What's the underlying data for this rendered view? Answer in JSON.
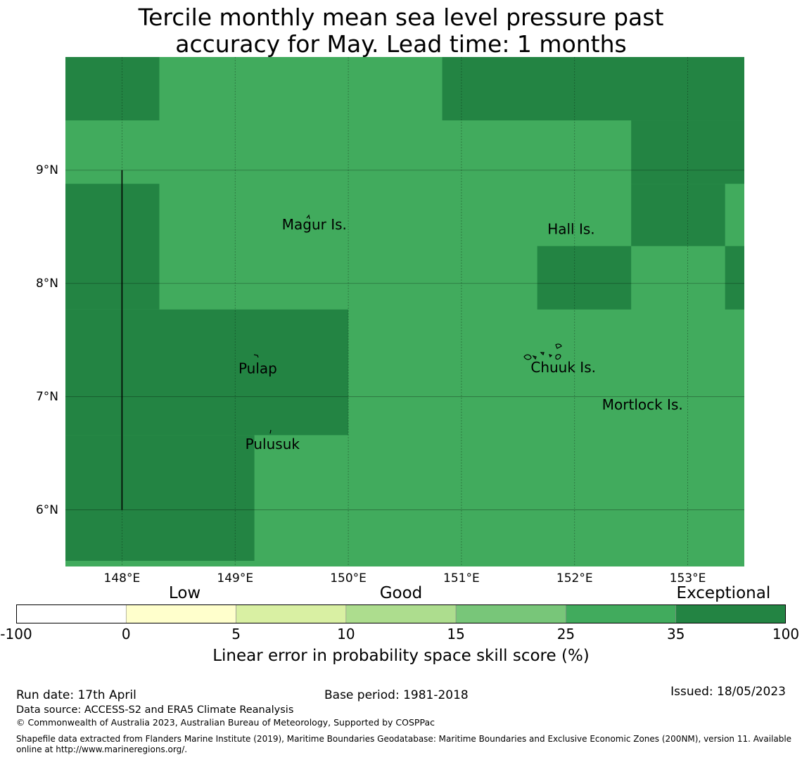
{
  "title": {
    "line1": "Tercile monthly mean sea level pressure past",
    "line2": "accuracy for May. Lead time: 1 months"
  },
  "map": {
    "lon_range": [
      147.5,
      153.5
    ],
    "lat_range": [
      5.5,
      10.0
    ],
    "lat_ticks": [
      {
        "value": 9,
        "label": "9°N"
      },
      {
        "value": 8,
        "label": "8°N"
      },
      {
        "value": 7,
        "label": "7°N"
      },
      {
        "value": 6,
        "label": "6°N"
      }
    ],
    "lon_ticks": [
      {
        "value": 148,
        "label": "148°E"
      },
      {
        "value": 149,
        "label": "149°E"
      },
      {
        "value": 150,
        "label": "150°E"
      },
      {
        "value": 151,
        "label": "151°E"
      },
      {
        "value": 152,
        "label": "152°E"
      },
      {
        "value": 153,
        "label": "153°E"
      }
    ],
    "colors": {
      "good": "#41ab5d",
      "exceptional": "#238443",
      "boundary": "#000000",
      "grid": "#000000"
    },
    "skill_cells": [
      {
        "lon": [
          147.5,
          148.33
        ],
        "lat": [
          9.44,
          10.0
        ],
        "category": "exceptional"
      },
      {
        "lon": [
          150.83,
          153.5
        ],
        "lat": [
          9.44,
          10.0
        ],
        "category": "exceptional"
      },
      {
        "lon": [
          152.5,
          153.5
        ],
        "lat": [
          8.88,
          9.44
        ],
        "category": "exceptional"
      },
      {
        "lon": [
          147.5,
          148.33
        ],
        "lat": [
          7.77,
          8.88
        ],
        "category": "exceptional"
      },
      {
        "lon": [
          152.5,
          153.33
        ],
        "lat": [
          8.33,
          8.88
        ],
        "category": "exceptional"
      },
      {
        "lon": [
          151.67,
          152.5
        ],
        "lat": [
          7.77,
          8.33
        ],
        "category": "exceptional"
      },
      {
        "lon": [
          153.33,
          153.5
        ],
        "lat": [
          7.77,
          8.33
        ],
        "category": "exceptional"
      },
      {
        "lon": [
          147.5,
          150.0
        ],
        "lat": [
          6.66,
          7.77
        ],
        "category": "exceptional"
      },
      {
        "lon": [
          147.5,
          149.17
        ],
        "lat": [
          5.55,
          6.66
        ],
        "category": "exceptional"
      }
    ],
    "boundary_line": {
      "lon": 148.0,
      "lat": [
        6.0,
        9.0
      ]
    },
    "places": [
      {
        "name": "Magur Is.",
        "lon": 149.7,
        "lat": 8.52
      },
      {
        "name": "Hall Is.",
        "lon": 151.97,
        "lat": 8.48
      },
      {
        "name": "Pulap",
        "lon": 149.2,
        "lat": 7.25
      },
      {
        "name": "Chuuk Is.",
        "lon": 151.9,
        "lat": 7.26
      },
      {
        "name": "Mortlock Is.",
        "lon": 152.6,
        "lat": 6.93
      },
      {
        "name": "Pulusuk",
        "lon": 149.33,
        "lat": 6.58
      }
    ]
  },
  "legend": {
    "categories": [
      {
        "label": "Low",
        "position": 0.219
      },
      {
        "label": "Good",
        "position": 0.5
      },
      {
        "label": "Exceptional",
        "position": 0.919
      }
    ],
    "bins": [
      {
        "from": "-100",
        "to": "0",
        "color": "#ffffff"
      },
      {
        "from": "0",
        "to": "5",
        "color": "#ffffcc"
      },
      {
        "from": "5",
        "to": "10",
        "color": "#d9f0a3"
      },
      {
        "from": "10",
        "to": "15",
        "color": "#addd8e"
      },
      {
        "from": "15",
        "to": "25",
        "color": "#78c679"
      },
      {
        "from": "25",
        "to": "35",
        "color": "#41ab5d"
      },
      {
        "from": "35",
        "to": "100",
        "color": "#238443"
      }
    ],
    "tick_labels": [
      "-100",
      "0",
      "5",
      "10",
      "15",
      "25",
      "35",
      "100"
    ],
    "title": "Linear error in probability space skill score (%)"
  },
  "footer": {
    "run_date": "Run date: 17th April",
    "base_period": "Base period: 1981-2018",
    "issued": "Issued: 18/05/2023",
    "data_source": "Data source: ACCESS-S2 and ERA5 Climate Reanalysis",
    "copyright": "© Commonwealth of Australia 2023, Australian Bureau of Meteorology, Supported by COSPPac",
    "shapefile_line1": "Shapefile data extracted from Flanders Marine Institute (2019), Maritime Boundaries Geodatabase: Maritime Boundaries and Exclusive Economic Zones (200NM), version 11. Available",
    "shapefile_line2": "online at http://www.marineregions.org/."
  }
}
